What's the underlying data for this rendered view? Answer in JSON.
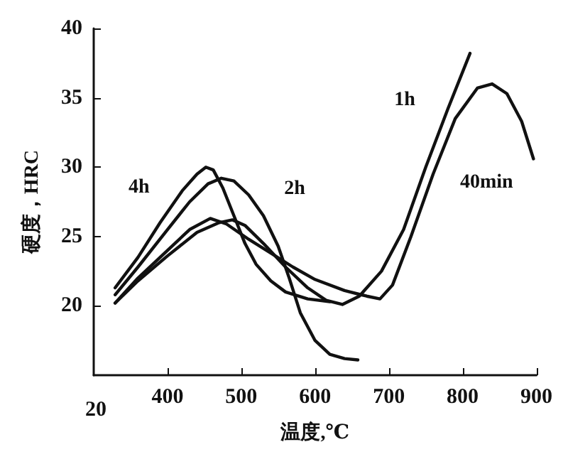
{
  "chart_data": {
    "type": "line",
    "xlabel": "温度,℃",
    "ylabel": "硬度，HRC",
    "xlim": [
      300,
      900
    ],
    "xticks": [
      400,
      500,
      600,
      700,
      800,
      900
    ],
    "annotations": [
      "20"
    ],
    "ylim": [
      15,
      40
    ],
    "yticks": [
      20,
      25,
      30,
      35,
      40
    ],
    "grid": false,
    "legend": false,
    "marker": "none",
    "line_style": "solid",
    "series": [
      {
        "name": "1h",
        "color": "#111111",
        "x": [
          329,
          360,
          400,
          440,
          470,
          488,
          505,
          530,
          560,
          590,
          615,
          637,
          660,
          690,
          720,
          750,
          780,
          810
        ],
        "values": [
          20.2,
          21.8,
          23.6,
          25.3,
          26.0,
          26.2,
          25.8,
          24.5,
          22.8,
          21.3,
          20.4,
          20.1,
          20.7,
          22.5,
          25.5,
          30,
          34.2,
          38.2
        ]
      },
      {
        "name": "40min",
        "color": "#111111",
        "x": [
          329,
          360,
          400,
          430,
          458,
          480,
          510,
          540,
          570,
          600,
          640,
          670,
          688,
          705,
          730,
          760,
          790,
          820,
          840,
          860,
          880,
          896
        ],
        "values": [
          20.2,
          22,
          24,
          25.5,
          26.3,
          25.9,
          24.8,
          23.8,
          22.8,
          21.9,
          21.1,
          20.7,
          20.5,
          21.5,
          25,
          29.5,
          33.5,
          35.7,
          36,
          35.3,
          33.3,
          30.6
        ]
      },
      {
        "name": "2h",
        "color": "#111111",
        "x": [
          329,
          360,
          400,
          430,
          455,
          473,
          490,
          510,
          530,
          550,
          565,
          580,
          600,
          620,
          640,
          658
        ],
        "values": [
          20.8,
          22.8,
          25.5,
          27.5,
          28.8,
          29.2,
          29.0,
          28.0,
          26.5,
          24.3,
          22,
          19.5,
          17.5,
          16.5,
          16.2,
          16.1
        ]
      },
      {
        "name": "4h",
        "color": "#111111",
        "x": [
          329,
          360,
          390,
          420,
          440,
          452,
          462,
          475,
          490,
          505,
          520,
          540,
          560,
          590,
          620
        ],
        "values": [
          21.3,
          23.5,
          26,
          28.3,
          29.5,
          30.0,
          29.8,
          28.5,
          26.5,
          24.5,
          23,
          21.8,
          21,
          20.5,
          20.3
        ]
      }
    ]
  }
}
